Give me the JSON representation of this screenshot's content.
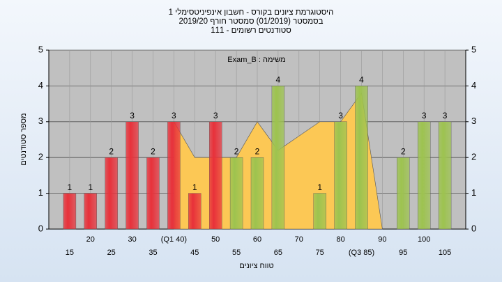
{
  "chart_data": {
    "type": "bar",
    "title": "היסטוגרמת ציונים בקורס - חשבון אינפיניטסימלי 1",
    "subtitle": "בסמסטר (01/2019)  סמסטר חורף 2019/20",
    "subtitle2": "סטודנטים רשומים - 111",
    "annotation": "משימה : Exam_B",
    "y_label": "מספר סטודנטים",
    "x_label": "טווח ציונים",
    "categories": [
      "15",
      "20",
      "25",
      "30",
      "35",
      "(Q1 40)",
      "45",
      "50",
      "55",
      "60",
      "65",
      "70",
      "75",
      "80",
      "(Q3 85)",
      "90",
      "95",
      "100",
      "105"
    ],
    "values": [
      1,
      1,
      2,
      3,
      2,
      3,
      1,
      3,
      2,
      2,
      4,
      0,
      1,
      3,
      4,
      0,
      2,
      3,
      3
    ],
    "colors": [
      "#e8313a",
      "#e8313a",
      "#e8313a",
      "#e8313a",
      "#e8313a",
      "#e8313a",
      "#e8313a",
      "#e8313a",
      "#9dc34f",
      "#9dc34f",
      "#9dc34f",
      "#9dc34f",
      "#9dc34f",
      "#9dc34f",
      "#9dc34f",
      "#9dc34f",
      "#9dc34f",
      "#9dc34f",
      "#9dc34f"
    ],
    "area": {
      "color": "#fcc855",
      "values": [
        null,
        null,
        null,
        null,
        null,
        3,
        2,
        2,
        2,
        3,
        2.2,
        2.6,
        3,
        3,
        3.8,
        0,
        null,
        null,
        null
      ]
    },
    "ylim": [
      0,
      5
    ],
    "yticks": [
      0,
      1,
      2,
      3,
      4,
      5
    ],
    "grid": true
  }
}
